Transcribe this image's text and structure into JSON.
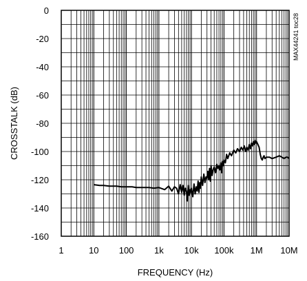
{
  "chart_data": {
    "type": "line",
    "xlabel": "FREQUENCY (Hz)",
    "ylabel": "CROSSTALK (dB)",
    "note": "MAX44241 toc28",
    "xscale": "log",
    "xlim": [
      1,
      10000000
    ],
    "ylim": [
      -160,
      0
    ],
    "grid": true,
    "x_ticks": [
      {
        "value": 1,
        "label": "1"
      },
      {
        "value": 10,
        "label": "10"
      },
      {
        "value": 100,
        "label": "100"
      },
      {
        "value": 1000,
        "label": "1k"
      },
      {
        "value": 10000,
        "label": "10k"
      },
      {
        "value": 100000,
        "label": "100k"
      },
      {
        "value": 1000000,
        "label": "1M"
      },
      {
        "value": 10000000,
        "label": "10M"
      }
    ],
    "y_ticks": [
      {
        "value": 0,
        "label": "0"
      },
      {
        "value": -20,
        "label": "-20"
      },
      {
        "value": -40,
        "label": "-40"
      },
      {
        "value": -60,
        "label": "-60"
      },
      {
        "value": -80,
        "label": "-80"
      },
      {
        "value": -100,
        "label": "-100"
      },
      {
        "value": -120,
        "label": "-120"
      },
      {
        "value": -140,
        "label": "-140"
      },
      {
        "value": -160,
        "label": "-160"
      }
    ],
    "series": [
      {
        "color": "#000000",
        "x": [
          10,
          15,
          20,
          30,
          50,
          70,
          100,
          150,
          200,
          300,
          500,
          700,
          1000,
          1500,
          2000,
          2500,
          3000,
          3500,
          4000,
          4500,
          5000,
          5500,
          6000,
          6500,
          7000,
          7500,
          8000,
          8500,
          9000,
          9500,
          10000,
          11000,
          12000,
          13000,
          14000,
          15000,
          16000,
          17000,
          18000,
          19000,
          20000,
          22000,
          24000,
          26000,
          28000,
          30000,
          32000,
          34000,
          36000,
          38000,
          40000,
          43000,
          46000,
          50000,
          55000,
          60000,
          65000,
          70000,
          75000,
          80000,
          85000,
          90000,
          95000,
          100000,
          110000,
          120000,
          130000,
          150000,
          170000,
          200000,
          230000,
          260000,
          300000,
          340000,
          380000,
          420000,
          460000,
          500000,
          550000,
          600000,
          650000,
          700000,
          750000,
          800000,
          850000,
          900000,
          950000,
          1000000,
          1100000,
          1200000,
          1300000,
          1400000,
          1500000,
          1600000,
          1700000,
          1800000,
          2000000,
          2500000,
          3000000,
          4000000,
          5000000,
          6000000,
          7000000,
          8000000,
          9000000,
          10000000
        ],
        "y": [
          -123.5,
          -124,
          -124,
          -124.5,
          -124.5,
          -125,
          -125,
          -125,
          -125.5,
          -125.5,
          -125.5,
          -126,
          -125.5,
          -127,
          -124.5,
          -128,
          -125,
          -126,
          -130,
          -123.5,
          -129,
          -124,
          -131,
          -126,
          -128,
          -135,
          -124,
          -131,
          -127,
          -129,
          -126,
          -132,
          -123,
          -130,
          -125,
          -128,
          -121,
          -129,
          -122,
          -126,
          -118,
          -124,
          -116,
          -122,
          -118,
          -119,
          -114,
          -120,
          -112,
          -121,
          -110,
          -117,
          -113,
          -111,
          -115,
          -109,
          -112,
          -110,
          -113,
          -108,
          -115,
          -107,
          -110,
          -106,
          -108,
          -102,
          -105,
          -101,
          -103,
          -99,
          -101,
          -98,
          -100,
          -97,
          -99,
          -96,
          -100,
          -97,
          -99,
          -95,
          -98,
          -94,
          -96,
          -93,
          -95,
          -92,
          -94,
          -93,
          -95,
          -97,
          -102,
          -105,
          -106,
          -104,
          -103,
          -105,
          -104,
          -104,
          -105,
          -104,
          -103,
          -104,
          -105,
          -104,
          -104,
          -105
        ]
      }
    ]
  }
}
